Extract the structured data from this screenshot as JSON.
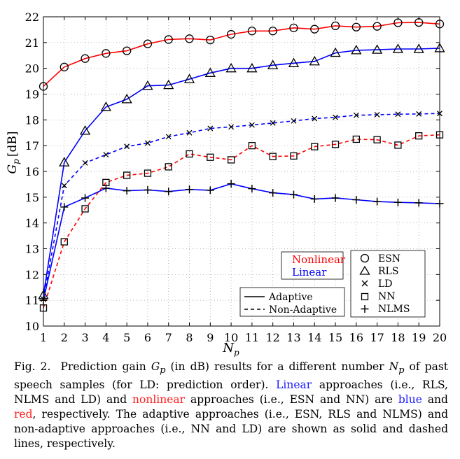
{
  "chart_data": {
    "type": "line",
    "xlabel": "N",
    "xlabel_sub": "p",
    "ylabel": "G",
    "ylabel_sub": "p",
    "ylabel_unit": "[dB]",
    "xlim": [
      1,
      20
    ],
    "ylim": [
      10,
      22
    ],
    "xticks": [
      1,
      2,
      3,
      4,
      5,
      6,
      7,
      8,
      9,
      10,
      11,
      12,
      13,
      14,
      15,
      16,
      17,
      18,
      19,
      20
    ],
    "yticks": [
      10,
      11,
      12,
      13,
      14,
      15,
      16,
      17,
      18,
      19,
      20,
      21,
      22
    ],
    "grid": true,
    "x": [
      1,
      2,
      3,
      4,
      5,
      6,
      7,
      8,
      9,
      10,
      11,
      12,
      13,
      14,
      15,
      16,
      17,
      18,
      19,
      20
    ],
    "series": [
      {
        "name": "ESN",
        "color": "#ff0000",
        "line": "solid",
        "marker": "circle",
        "values": [
          19.3,
          20.05,
          20.38,
          20.58,
          20.68,
          20.95,
          21.12,
          21.15,
          21.1,
          21.32,
          21.45,
          21.45,
          21.57,
          21.52,
          21.65,
          21.6,
          21.63,
          21.77,
          21.78,
          21.72
        ]
      },
      {
        "name": "RLS",
        "color": "#0000ff",
        "line": "solid",
        "marker": "triangle",
        "values": [
          11.2,
          16.35,
          17.58,
          18.5,
          18.8,
          19.32,
          19.35,
          19.58,
          19.82,
          20.0,
          20.0,
          20.12,
          20.2,
          20.27,
          20.6,
          20.7,
          20.72,
          20.75,
          20.75,
          20.78
        ]
      },
      {
        "name": "LD",
        "color": "#0000ff",
        "line": "dashed",
        "marker": "x",
        "values": [
          11.05,
          15.45,
          16.33,
          16.65,
          16.97,
          17.1,
          17.35,
          17.5,
          17.67,
          17.73,
          17.8,
          17.88,
          17.96,
          18.05,
          18.1,
          18.18,
          18.2,
          18.22,
          18.23,
          18.25
        ]
      },
      {
        "name": "NN",
        "color": "#ff0000",
        "line": "dashed",
        "marker": "square",
        "values": [
          10.7,
          13.27,
          14.55,
          15.57,
          15.85,
          15.93,
          16.18,
          16.68,
          16.55,
          16.45,
          17.0,
          16.58,
          16.6,
          16.96,
          17.05,
          17.25,
          17.23,
          17.02,
          17.38,
          17.42
        ]
      },
      {
        "name": "NLMS",
        "color": "#0000ff",
        "line": "solid",
        "marker": "plus",
        "values": [
          11.0,
          14.62,
          14.97,
          15.35,
          15.25,
          15.28,
          15.22,
          15.3,
          15.27,
          15.52,
          15.33,
          15.17,
          15.1,
          14.93,
          14.97,
          14.9,
          14.83,
          14.8,
          14.78,
          14.75
        ]
      }
    ],
    "legend_color": {
      "position": "middle-right",
      "entries": [
        {
          "label": "Nonlinear",
          "color": "#ff0000"
        },
        {
          "label": "Linear",
          "color": "#0000ff"
        }
      ]
    },
    "legend_line": {
      "position": "bottom-right",
      "entries": [
        {
          "label": "Adaptive",
          "line": "solid"
        },
        {
          "label": "Non-Adaptive",
          "line": "dashed"
        }
      ]
    },
    "legend_marker": {
      "position": "bottom-right",
      "entries": [
        {
          "label": "ESN",
          "marker": "circle"
        },
        {
          "label": "RLS",
          "marker": "triangle"
        },
        {
          "label": "LD",
          "marker": "x"
        },
        {
          "label": "NN",
          "marker": "square"
        },
        {
          "label": "NLMS",
          "marker": "plus"
        }
      ]
    }
  },
  "caption": {
    "fig_label": "Fig. 2.",
    "s1": "Prediction gain",
    "gp": "G",
    "gp_sub": "p",
    "s2": "(in dB) results for a different number",
    "np": "N",
    "np_sub": "p",
    "s3": "of past speech samples (for LD: prediction order).",
    "linear_word": "Linear",
    "s4": "approaches (i.e., RLS, NLMS and LD) and",
    "nonlinear_word": "nonlinear",
    "s5": "approaches (i.e., ESN and NN) are",
    "blue_word": "blue",
    "s6": "and",
    "red_word": "red",
    "s7": ", respectively. The adaptive approaches (i.e., ESN, RLS and NLMS) and non-adaptive approaches (i.e., NN and LD) are shown as solid and dashed lines, respectively."
  }
}
